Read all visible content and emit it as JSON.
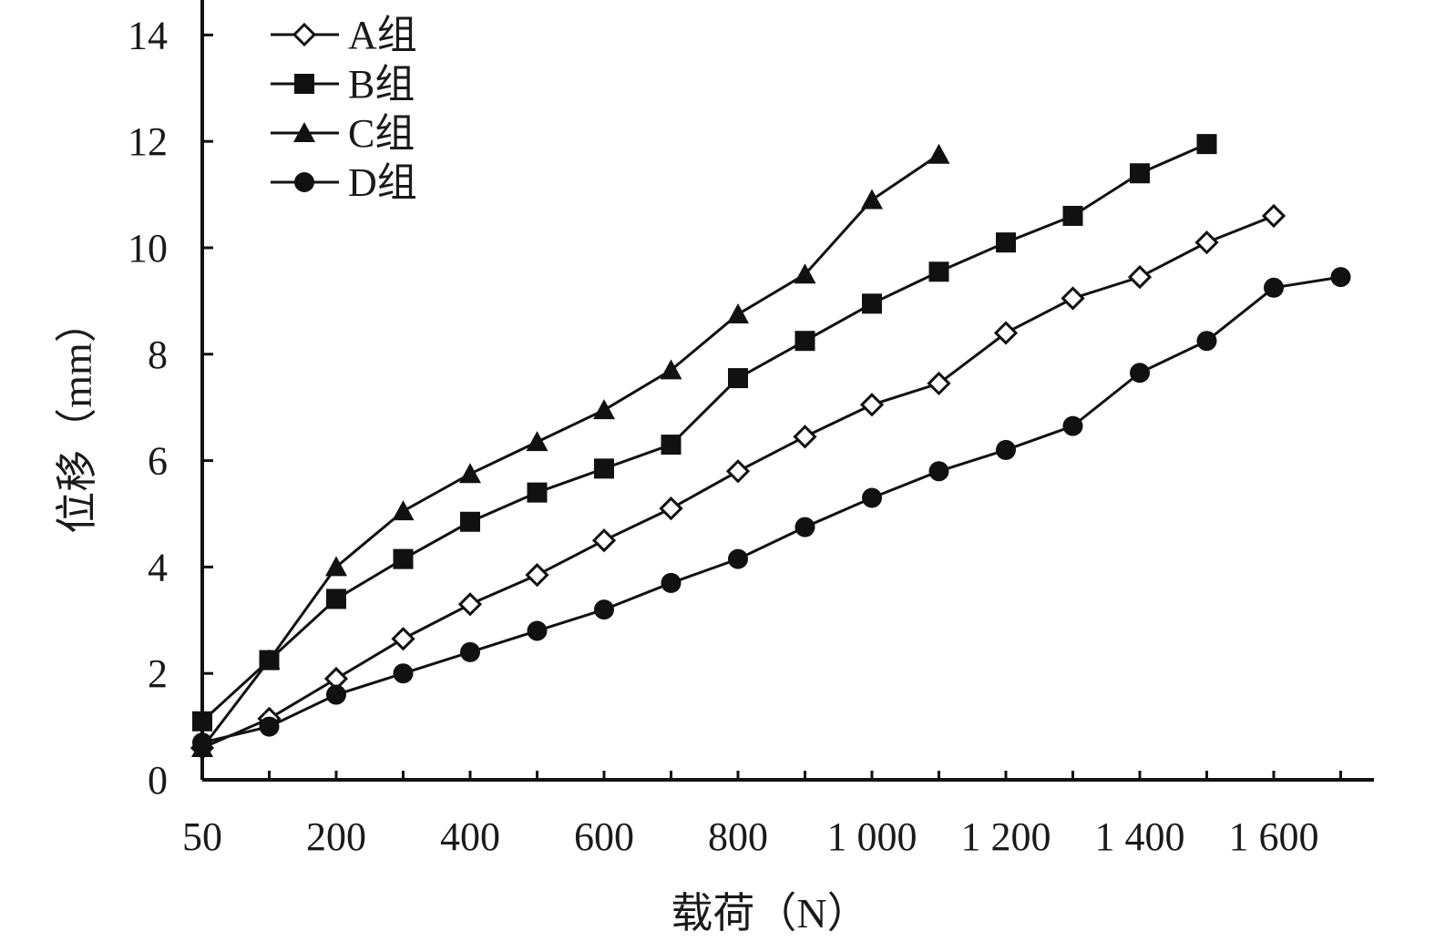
{
  "chart_data": {
    "type": "line",
    "xlabel": "载荷（N）",
    "ylabel": "位移（mm）",
    "x": [
      50,
      100,
      200,
      300,
      400,
      500,
      600,
      700,
      800,
      900,
      1000,
      1100,
      1200,
      1300,
      1400,
      1500,
      1600,
      1700
    ],
    "x_tick_labels": [
      "50",
      "200",
      "400",
      "600",
      "800",
      "1 000",
      "1 200",
      "1 400",
      "1 600"
    ],
    "x_tick_values": [
      50,
      200,
      400,
      600,
      800,
      1000,
      1200,
      1400,
      1600
    ],
    "y_ticks": [
      "0",
      "2",
      "4",
      "6",
      "8",
      "10",
      "12",
      "14"
    ],
    "ylim": [
      0,
      14
    ],
    "legend_position": "top-left",
    "grid": false,
    "series": [
      {
        "name": "A组",
        "marker": "diamond-open",
        "values": [
          0.6,
          1.15,
          1.9,
          2.65,
          3.3,
          3.85,
          4.5,
          5.1,
          5.8,
          6.45,
          7.05,
          7.45,
          8.4,
          9.05,
          9.45,
          10.1,
          10.6,
          null
        ]
      },
      {
        "name": "B组",
        "marker": "square-filled",
        "values": [
          1.1,
          2.25,
          3.4,
          4.15,
          4.85,
          5.4,
          5.85,
          6.3,
          7.55,
          8.25,
          8.95,
          9.55,
          10.1,
          10.6,
          11.4,
          11.95,
          null,
          null
        ]
      },
      {
        "name": "C组",
        "marker": "triangle-filled",
        "values": [
          0.6,
          2.25,
          4.0,
          5.05,
          5.75,
          6.35,
          6.95,
          7.7,
          8.75,
          9.5,
          10.9,
          11.75,
          null,
          null,
          null,
          null,
          null,
          null
        ]
      },
      {
        "name": "D组",
        "marker": "circle-filled",
        "values": [
          0.7,
          1.0,
          1.6,
          2.0,
          2.4,
          2.8,
          3.2,
          3.7,
          4.15,
          4.75,
          5.3,
          5.8,
          6.2,
          6.65,
          7.65,
          8.25,
          9.25,
          9.45
        ]
      }
    ]
  }
}
